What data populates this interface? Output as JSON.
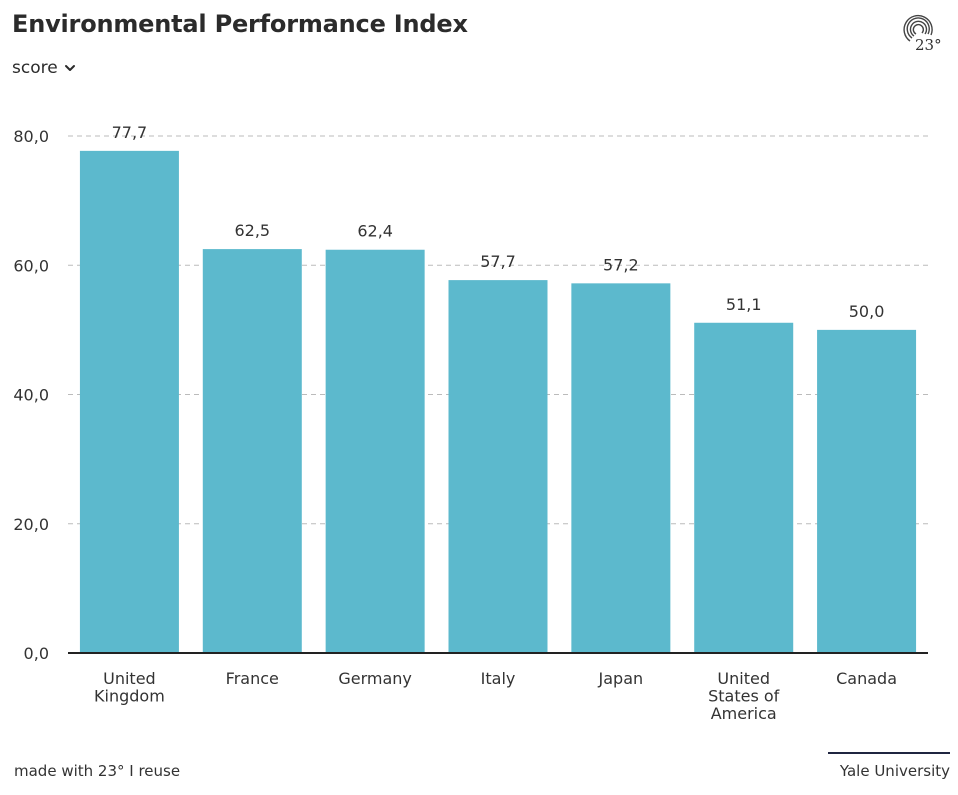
{
  "header": {
    "title": "Environmental Performance Index",
    "metric_selector": "score"
  },
  "logo": {
    "text": "23°",
    "icon": "spiral-logo-icon"
  },
  "footer": {
    "made_with": "made with 23° I reuse",
    "source": "Yale University"
  },
  "colors": {
    "bar": "#5cb9cd",
    "grid": "#bbbbbb",
    "axis": "#222222"
  },
  "chart_data": {
    "type": "bar",
    "title": "Environmental Performance Index",
    "ylabel": "score",
    "xlabel": "",
    "categories": [
      "United Kingdom",
      "France",
      "Germany",
      "Italy",
      "Japan",
      "United States of America",
      "Canada"
    ],
    "category_lines": [
      [
        "United",
        "Kingdom"
      ],
      [
        "France"
      ],
      [
        "Germany"
      ],
      [
        "Italy"
      ],
      [
        "Japan"
      ],
      [
        "United",
        "States of",
        "America"
      ],
      [
        "Canada"
      ]
    ],
    "values": [
      77.7,
      62.5,
      62.4,
      57.7,
      57.2,
      51.1,
      50.0
    ],
    "value_labels": [
      "77,7",
      "62,5",
      "62,4",
      "57,7",
      "57,2",
      "51,1",
      "50,0"
    ],
    "yticks": [
      0,
      20,
      40,
      60,
      80
    ],
    "ytick_labels": [
      "0,0",
      "20,0",
      "40,0",
      "60,0",
      "80,0"
    ],
    "ylim": [
      0,
      80
    ],
    "grid": true
  }
}
